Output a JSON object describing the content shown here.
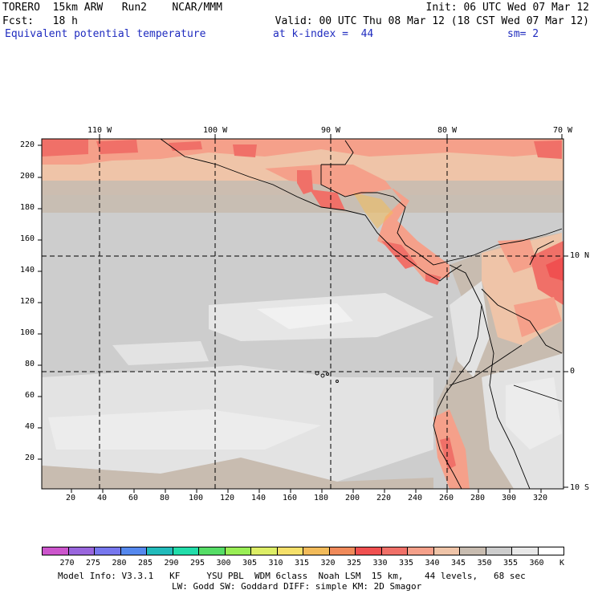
{
  "header": {
    "line1_left": "TORERO  15km ARW   Run2    NCAR/MMM",
    "line1_right": "Init: 06 UTC Wed 07 Mar 12",
    "line2_left": "Fcst:   18 h",
    "line2_right": "Valid: 00 UTC Thu 08 Mar 12 (18 CST Wed 07 Mar 12)",
    "line3_left": "Equivalent potential temperature",
    "line3_mid": "at k-index =  44",
    "line3_right": "sm= 2"
  },
  "map": {
    "top_lon_labels": [
      "110 W",
      "100 W",
      "90 W",
      "80 W",
      "70 W"
    ],
    "right_lat_labels": [
      "10 N",
      "0",
      "10 S"
    ],
    "left_y_ticks": [
      "220",
      "200",
      "180",
      "160",
      "140",
      "120",
      "100",
      "80",
      "60",
      "40",
      "20"
    ],
    "bottom_x_ticks": [
      "20",
      "40",
      "60",
      "80",
      "100",
      "120",
      "140",
      "160",
      "180",
      "200",
      "220",
      "240",
      "260",
      "280",
      "300",
      "320"
    ]
  },
  "colorbar": {
    "levels": [
      "270",
      "275",
      "280",
      "285",
      "290",
      "295",
      "300",
      "305",
      "310",
      "315",
      "320",
      "325",
      "330",
      "335",
      "340",
      "345",
      "350",
      "355",
      "360"
    ],
    "unit": "K",
    "colors": [
      "#cc55cc",
      "#9966dd",
      "#7777ee",
      "#5588ee",
      "#22bbbb",
      "#22ddaa",
      "#55dd66",
      "#99ee55",
      "#ddee66",
      "#f5e06a",
      "#f2bb5a",
      "#f08a5a",
      "#f05050",
      "#f07068",
      "#f5a08a",
      "#efc4a8",
      "#c8bcb0",
      "#cdcdcd",
      "#e8e8e8",
      "#ffffff"
    ]
  },
  "footer": {
    "line1": "Model Info: V3.3.1   KF     YSU PBL  WDM 6class  Noah LSM  15 km,    44 levels,   68 sec",
    "line2": "LW: Godd SW: Goddard DIFF: simple KM: 2D Smagor"
  }
}
